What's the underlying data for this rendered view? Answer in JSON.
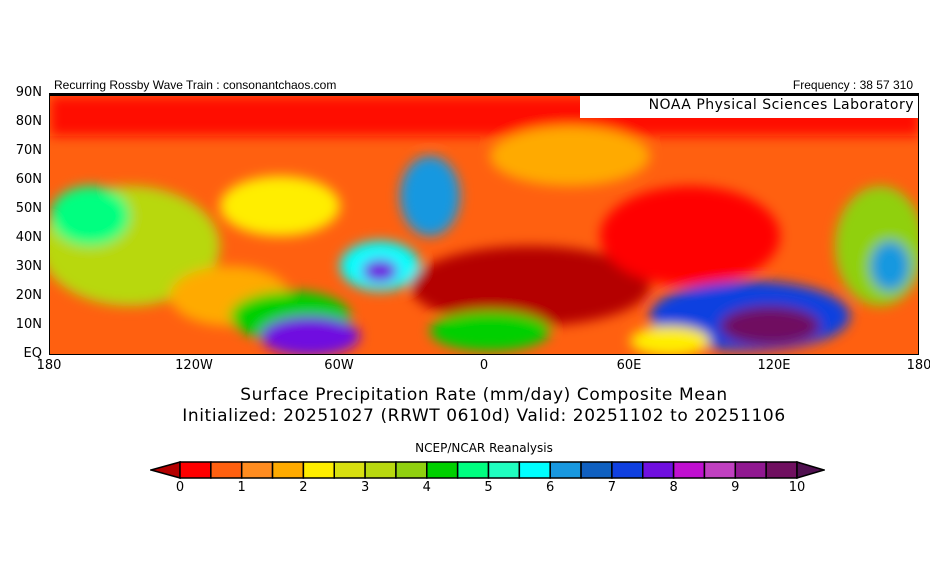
{
  "header": {
    "left": "Recurring Rossby Wave Train : consonantchaos.com",
    "right": "Frequency : 38 57 310"
  },
  "map": {
    "credit": "NOAA Physical Sciences Laboratory",
    "lat_labels": [
      "90N",
      "80N",
      "70N",
      "60N",
      "50N",
      "40N",
      "30N",
      "20N",
      "10N",
      "EQ"
    ],
    "lon_labels": [
      "180",
      "120W",
      "60W",
      "0",
      "60E",
      "120E",
      "180"
    ]
  },
  "title": {
    "line1": "Surface Precipitation Rate (mm/day) Composite Mean",
    "line2": "Initialized: 20251027 (RRWT 0610d) Valid: 20251102 to 20251106"
  },
  "source": "NCEP/NCAR Reanalysis",
  "colorbar": {
    "labels": [
      "0",
      "1",
      "2",
      "3",
      "4",
      "5",
      "6",
      "7",
      "8",
      "9",
      "10"
    ],
    "under_color": "#b40000",
    "over_color": "#501050",
    "colors": [
      "#ff0000",
      "#ff6010",
      "#ff8c20",
      "#ffaa00",
      "#ffee00",
      "#d8e010",
      "#b8d810",
      "#90d010",
      "#00d000",
      "#00ff80",
      "#20ffc0",
      "#00ffff",
      "#1898e0",
      "#1060c0",
      "#1040e0",
      "#7010e0",
      "#c010d0",
      "#c040c0",
      "#901890",
      "#701060"
    ]
  }
}
